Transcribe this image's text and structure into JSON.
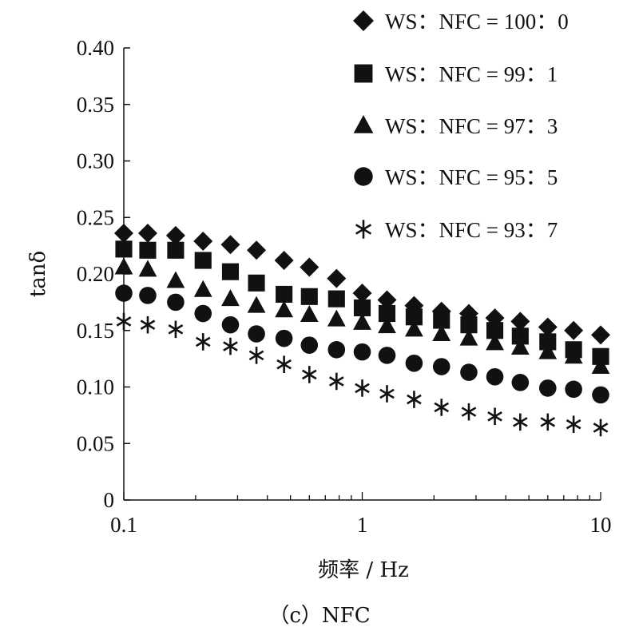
{
  "chart_data": {
    "type": "scatter",
    "xscale": "log",
    "xlim": [
      0.1,
      10
    ],
    "ylim": [
      0,
      0.4
    ],
    "x_ticks": [
      "0.1",
      "1",
      "10"
    ],
    "y_ticks": [
      "0",
      "0.05",
      "0.10",
      "0.15",
      "0.20",
      "0.25",
      "0.30",
      "0.35",
      "0.40"
    ],
    "xlabel": "频率 / Hz",
    "ylabel": "tanδ",
    "caption": "（c）NFC",
    "grid": false,
    "legend_position": "top-right",
    "x": [
      0.1,
      0.126,
      0.165,
      0.215,
      0.28,
      0.36,
      0.47,
      0.6,
      0.78,
      1.0,
      1.27,
      1.65,
      2.15,
      2.8,
      3.6,
      4.6,
      6.0,
      7.7,
      10.0
    ],
    "series": [
      {
        "name": "WS：NFC = 100：0",
        "marker": "diamond",
        "values": [
          0.236,
          0.236,
          0.234,
          0.229,
          0.226,
          0.221,
          0.212,
          0.206,
          0.196,
          0.183,
          0.177,
          0.172,
          0.167,
          0.165,
          0.161,
          0.158,
          0.153,
          0.15,
          0.146
        ]
      },
      {
        "name": "WS：NFC = 99：1",
        "marker": "square",
        "values": [
          0.222,
          0.221,
          0.221,
          0.212,
          0.202,
          0.192,
          0.182,
          0.18,
          0.178,
          0.17,
          0.165,
          0.162,
          0.159,
          0.155,
          0.15,
          0.145,
          0.14,
          0.133,
          0.127
        ]
      },
      {
        "name": "WS：NFC = 97：3",
        "marker": "triangle",
        "values": [
          0.206,
          0.204,
          0.194,
          0.186,
          0.178,
          0.172,
          0.168,
          0.164,
          0.16,
          0.157,
          0.154,
          0.151,
          0.147,
          0.143,
          0.139,
          0.135,
          0.131,
          0.127,
          0.118
        ]
      },
      {
        "name": "WS：NFC = 95：5",
        "marker": "circle",
        "values": [
          0.183,
          0.181,
          0.175,
          0.165,
          0.155,
          0.147,
          0.143,
          0.137,
          0.133,
          0.131,
          0.128,
          0.121,
          0.118,
          0.113,
          0.109,
          0.104,
          0.099,
          0.098,
          0.093
        ]
      },
      {
        "name": "WS：NFC = 93：7",
        "marker": "asterisk",
        "values": [
          0.158,
          0.155,
          0.151,
          0.14,
          0.136,
          0.128,
          0.12,
          0.111,
          0.105,
          0.099,
          0.094,
          0.089,
          0.082,
          0.078,
          0.074,
          0.069,
          0.069,
          0.067,
          0.064
        ]
      }
    ]
  }
}
